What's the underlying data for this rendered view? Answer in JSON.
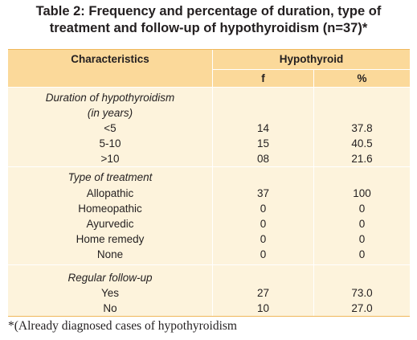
{
  "title": {
    "line1": "Table 2: Frequency and percentage of duration, type of",
    "line2": "treatment and follow-up of hypothyroidism (n=37)*"
  },
  "header": {
    "characteristics": "Characteristics",
    "group": "Hypothyroid",
    "f": "f",
    "percent": "%"
  },
  "sections": [
    {
      "heading_lines": [
        "Duration of hypothyroidism",
        "(in years)"
      ],
      "rows": [
        {
          "label": "<5",
          "f": "14",
          "pct": "37.8"
        },
        {
          "label": "5-10",
          "f": "15",
          "pct": "40.5"
        },
        {
          "label": ">10",
          "f": "08",
          "pct": "21.6"
        }
      ]
    },
    {
      "heading_lines": [
        "Type of treatment"
      ],
      "rows": [
        {
          "label": "Allopathic",
          "f": "37",
          "pct": "100"
        },
        {
          "label": "Homeopathic",
          "f": "0",
          "pct": "0"
        },
        {
          "label": "Ayurvedic",
          "f": "0",
          "pct": "0"
        },
        {
          "label": "Home remedy",
          "f": "0",
          "pct": "0"
        },
        {
          "label": "None",
          "f": "0",
          "pct": "0"
        }
      ]
    },
    {
      "heading_lines": [
        "Regular follow-up"
      ],
      "rows": [
        {
          "label": "Yes",
          "f": "27",
          "pct": "73.0"
        },
        {
          "label": "No",
          "f": "10",
          "pct": "27.0"
        }
      ]
    }
  ],
  "footnote": "*(Already diagnosed cases of hypothyroidism"
}
